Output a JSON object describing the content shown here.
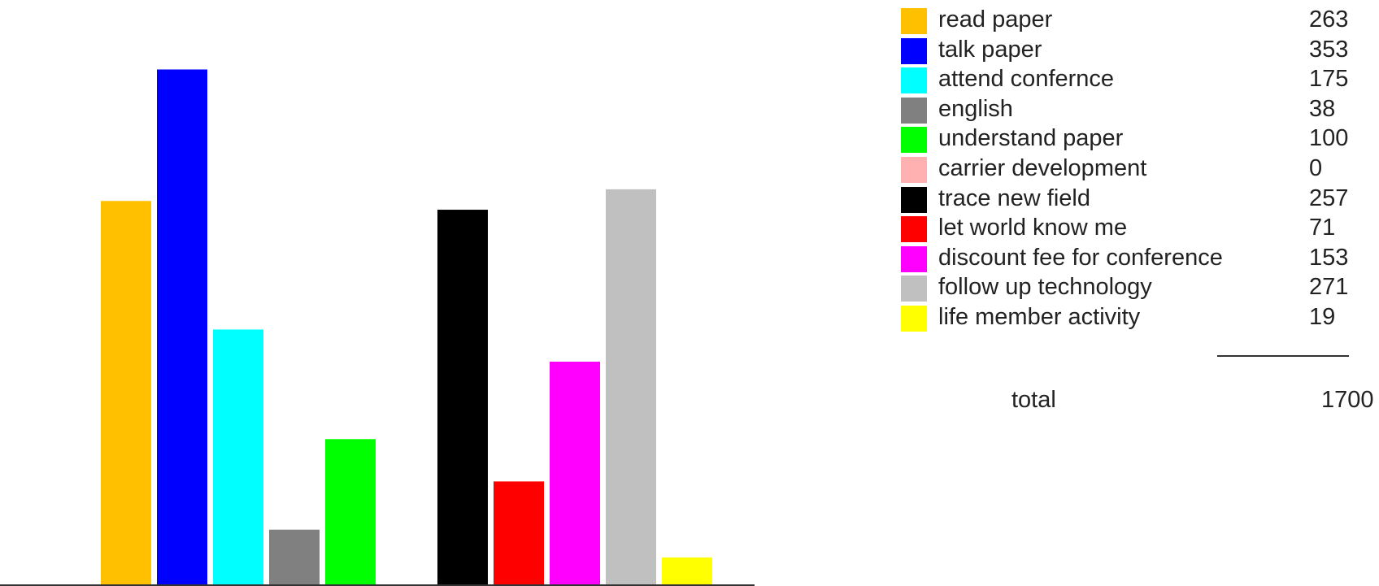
{
  "chart_data": {
    "type": "bar",
    "categories": [
      "read paper",
      "talk paper",
      "attend confernce",
      "english",
      "understand paper",
      "carrier development",
      "trace new field",
      "let world know me",
      "discount fee for conference",
      "follow up technology",
      "life member activity"
    ],
    "values": [
      263,
      353,
      175,
      38,
      100,
      0,
      257,
      71,
      153,
      271,
      19
    ],
    "colors": [
      "#ffc000",
      "#0000ff",
      "#00ffff",
      "#808080",
      "#00ff00",
      "#ffb0b0",
      "#000000",
      "#ff0000",
      "#ff00ff",
      "#c0c0c0",
      "#ffff00"
    ],
    "ylim": [
      0,
      400
    ],
    "legend": "right",
    "grid": false,
    "total_label": "total",
    "total_value": "1700"
  }
}
